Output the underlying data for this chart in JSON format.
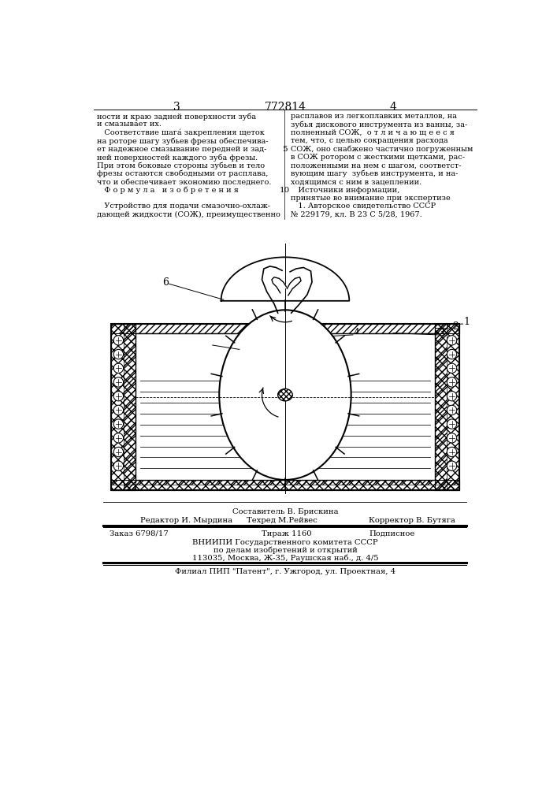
{
  "page_num_left": "3",
  "patent_num": "772814",
  "page_num_right": "4",
  "bg_color": "#ffffff",
  "text_color": "#000000",
  "left_col_text": [
    "ности и краю задней поверхности зуба",
    "и смазывает их.",
    "   Соответствие шага́ закрепления щеток",
    "на роторе шагу зубьев фрезы обеспечива-",
    "ет надежное смазывание передней и зад-",
    "ней поверхностей каждого зуба фрезы.",
    "При этом боковые стороны зубьев и тело",
    "фрезы остаются свободными от расплава,",
    "что и обеспечивает экономию последнего.",
    "   Ф о р м у л а   и з о б р е т е н и я",
    "",
    "   Устройство для подачи смазочно-охлаж-",
    "дающей жидкости (СОЖ), преимущественно"
  ],
  "right_col_text": [
    "расплавов из легкоплавких металлов, на",
    "зубья дискового инструмента из ванны, за-",
    "полненный СОЖ,  о т л и ч а ю щ е е с я",
    "тем, что, с целью сокращения расхода",
    "СОЖ, оно снабжено частично погруженным",
    "в СОЖ ротором с жесткими щетками, рас-",
    "положенными на нем с шагом, соответст-",
    "вующим шагу  зубьев инструмента, и на-",
    "ходящимся с ним в зацеплении.",
    "   Источники информации,",
    "принятые во внимание при экспертизе",
    "   1. Авторское свидетельство СССР",
    "№ 229179, кл. В 23 С 5/28, 1967."
  ],
  "line_number_5": "5",
  "line_number_10": "10",
  "footer_sestavitel": "Составитель В. Брискина",
  "footer_redaktor": "Редактор И. Мырдина",
  "footer_tehred": "Техред М.Рейвес",
  "footer_korrektor": "Корректор В. Бутяга",
  "footer_zakaz": "Заказ 6798/17",
  "footer_tirazh": "Тираж 1160",
  "footer_podpisnoe": "Подписное",
  "footer_vniip1": "ВНИИПИ Государственного комитета СССР",
  "footer_vniip2": "по делам изобретений и открытий",
  "footer_vniip3": "113035, Москва, Ж-35, Раушская наб., д. 4/5",
  "footer_filial": "Филиал ПИП \"Патент\", г. Ужгород, ул. Проектная, 4"
}
